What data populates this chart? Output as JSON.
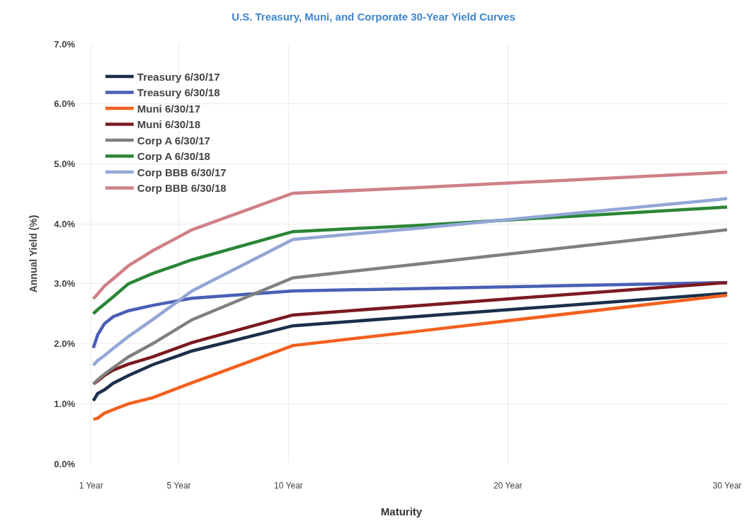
{
  "chart_data": {
    "type": "line",
    "title": "U.S. Treasury, Muni, and Corporate 30-Year Yield Curves",
    "xlabel": "Maturity",
    "ylabel": "Annual Yield (%)",
    "x": [
      1.1,
      1.3,
      1.6,
      2,
      2.7,
      3.8,
      5.6,
      10.2,
      15.7,
      30
    ],
    "series": [
      {
        "name": "Treasury 6/30/17",
        "color": "#1b2f4a",
        "values": [
          1.05,
          1.17,
          1.23,
          1.34,
          1.47,
          1.65,
          1.88,
          2.3,
          2.45,
          2.84
        ]
      },
      {
        "name": "Treasury 6/30/18",
        "color": "#4a5fb5",
        "values": [
          1.93,
          2.15,
          2.33,
          2.45,
          2.55,
          2.64,
          2.76,
          2.88,
          2.92,
          3.02
        ]
      },
      {
        "name": "Muni 6/30/17",
        "color": "#f4601e",
        "values": [
          0.74,
          0.76,
          0.84,
          0.9,
          1.0,
          1.1,
          1.35,
          1.97,
          2.2,
          2.81
        ]
      },
      {
        "name": "Muni 6/30/18",
        "color": "#7a1a20",
        "values": [
          1.33,
          1.38,
          1.47,
          1.56,
          1.66,
          1.78,
          2.02,
          2.48,
          2.63,
          3.02
        ]
      },
      {
        "name": "Corp A 6/30/17",
        "color": "#808080",
        "values": [
          1.33,
          1.4,
          1.49,
          1.6,
          1.78,
          2.0,
          2.4,
          3.1,
          3.32,
          3.9
        ]
      },
      {
        "name": "Corp A 6/30/18",
        "color": "#2a8636",
        "values": [
          2.5,
          2.57,
          2.66,
          2.78,
          3.0,
          3.17,
          3.4,
          3.87,
          3.97,
          4.28
        ]
      },
      {
        "name": "Corp BBB 6/30/17",
        "color": "#93a6d6",
        "values": [
          1.64,
          1.72,
          1.8,
          1.92,
          2.12,
          2.4,
          2.88,
          3.74,
          3.92,
          4.42
        ]
      },
      {
        "name": "Corp BBB 6/30/18",
        "color": "#d08088",
        "values": [
          2.75,
          2.83,
          2.96,
          3.08,
          3.3,
          3.55,
          3.9,
          4.51,
          4.6,
          4.86
        ]
      }
    ],
    "xlim": [
      0.3,
      30
    ],
    "xticks": [
      {
        "value": 1,
        "label": "1 Year"
      },
      {
        "value": 5,
        "label": "5 Year"
      },
      {
        "value": 10,
        "label": "10 Year"
      },
      {
        "value": 20,
        "label": "20 Year"
      },
      {
        "value": 30,
        "label": "30 Year"
      }
    ],
    "ylim": [
      0,
      7
    ],
    "yticks": [
      {
        "value": 0,
        "label": "0.0%"
      },
      {
        "value": 1,
        "label": "1.0%"
      },
      {
        "value": 2,
        "label": "2.0%"
      },
      {
        "value": 3,
        "label": "3.0%"
      },
      {
        "value": 4,
        "label": "4.0%"
      },
      {
        "value": 5,
        "label": "5.0%"
      },
      {
        "value": 6,
        "label": "6.0%"
      },
      {
        "value": 7,
        "label": "7.0%"
      }
    ],
    "grid": true,
    "legend": "top left",
    "line_style": "solid",
    "marker": "none"
  }
}
